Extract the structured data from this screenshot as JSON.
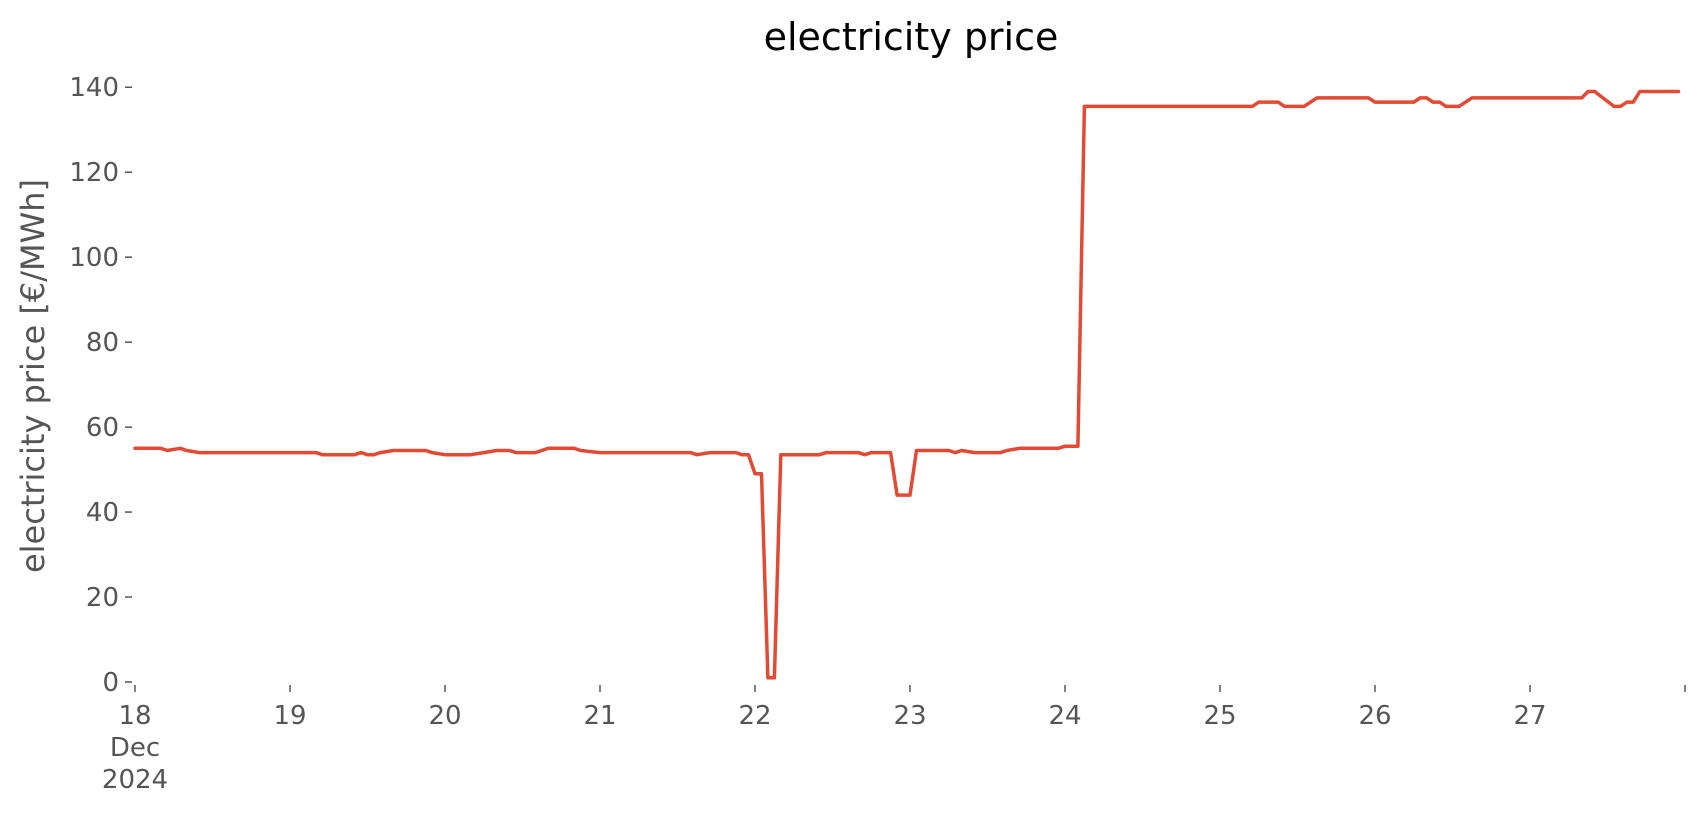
{
  "chart_data": {
    "type": "line",
    "title": "electricity price",
    "xlabel": "",
    "ylabel": "electricity price [€/MWh]",
    "ylim": [
      0,
      145
    ],
    "xlim": [
      "2024-12-18",
      "2024-12-28"
    ],
    "grid": false,
    "legend": "none",
    "y_ticks": [
      "0",
      "20",
      "40",
      "60",
      "80",
      "100",
      "120",
      "140"
    ],
    "x_ticks": [
      {
        "lines": [
          "18",
          "Dec",
          "2024"
        ]
      },
      {
        "lines": [
          "19"
        ]
      },
      {
        "lines": [
          "20"
        ]
      },
      {
        "lines": [
          "21"
        ]
      },
      {
        "lines": [
          "22"
        ]
      },
      {
        "lines": [
          "23"
        ]
      },
      {
        "lines": [
          "24"
        ]
      },
      {
        "lines": [
          "25"
        ]
      },
      {
        "lines": [
          "26"
        ]
      },
      {
        "lines": [
          "27"
        ]
      },
      {
        "lines": [
          ""
        ]
      }
    ],
    "series": [
      {
        "color": "#e24a33",
        "points": [
          [
            "2024-12-18 00:00",
            55
          ],
          [
            "2024-12-18 04:00",
            55
          ],
          [
            "2024-12-18 05:00",
            54.5
          ],
          [
            "2024-12-18 07:00",
            55
          ],
          [
            "2024-12-18 08:00",
            54.5
          ],
          [
            "2024-12-18 10:00",
            54
          ],
          [
            "2024-12-19 04:00",
            54
          ],
          [
            "2024-12-19 05:00",
            53.5
          ],
          [
            "2024-12-19 10:00",
            53.5
          ],
          [
            "2024-12-19 11:00",
            54
          ],
          [
            "2024-12-19 12:00",
            53.5
          ],
          [
            "2024-12-19 13:00",
            53.5
          ],
          [
            "2024-12-19 14:00",
            54
          ],
          [
            "2024-12-19 16:00",
            54.5
          ],
          [
            "2024-12-19 21:00",
            54.5
          ],
          [
            "2024-12-19 22:00",
            54
          ],
          [
            "2024-12-20 00:00",
            53.5
          ],
          [
            "2024-12-20 04:00",
            53.5
          ],
          [
            "2024-12-20 06:00",
            54
          ],
          [
            "2024-12-20 08:00",
            54.5
          ],
          [
            "2024-12-20 10:00",
            54.5
          ],
          [
            "2024-12-20 11:00",
            54
          ],
          [
            "2024-12-20 14:00",
            54
          ],
          [
            "2024-12-20 16:00",
            55
          ],
          [
            "2024-12-20 20:00",
            55
          ],
          [
            "2024-12-20 21:00",
            54.5
          ],
          [
            "2024-12-21 00:00",
            54
          ],
          [
            "2024-12-21 14:00",
            54
          ],
          [
            "2024-12-21 15:00",
            53.5
          ],
          [
            "2024-12-21 17:00",
            54
          ],
          [
            "2024-12-21 21:00",
            54
          ],
          [
            "2024-12-21 22:00",
            53.5
          ],
          [
            "2024-12-21 23:00",
            53.5
          ],
          [
            "2024-12-22 00:00",
            49
          ],
          [
            "2024-12-22 01:00",
            49
          ],
          [
            "2024-12-22 02:00",
            1
          ],
          [
            "2024-12-22 03:00",
            1
          ],
          [
            "2024-12-22 04:00",
            53.5
          ],
          [
            "2024-12-22 10:00",
            53.5
          ],
          [
            "2024-12-22 11:00",
            54
          ],
          [
            "2024-12-22 16:00",
            54
          ],
          [
            "2024-12-22 17:00",
            53.5
          ],
          [
            "2024-12-22 18:00",
            54
          ],
          [
            "2024-12-22 21:00",
            54
          ],
          [
            "2024-12-22 22:00",
            44
          ],
          [
            "2024-12-23 00:00",
            44
          ],
          [
            "2024-12-23 01:00",
            54.5
          ],
          [
            "2024-12-23 06:00",
            54.5
          ],
          [
            "2024-12-23 07:00",
            54
          ],
          [
            "2024-12-23 08:00",
            54.5
          ],
          [
            "2024-12-23 10:00",
            54
          ],
          [
            "2024-12-23 14:00",
            54
          ],
          [
            "2024-12-23 15:00",
            54.5
          ],
          [
            "2024-12-23 17:00",
            55
          ],
          [
            "2024-12-23 23:00",
            55
          ],
          [
            "2024-12-24 00:00",
            55.5
          ],
          [
            "2024-12-24 02:00",
            55.5
          ],
          [
            "2024-12-24 03:00",
            135.5
          ],
          [
            "2024-12-25 05:00",
            135.5
          ],
          [
            "2024-12-25 06:00",
            136.5
          ],
          [
            "2024-12-25 09:00",
            136.5
          ],
          [
            "2024-12-25 10:00",
            135.5
          ],
          [
            "2024-12-25 13:00",
            135.5
          ],
          [
            "2024-12-25 15:00",
            137.5
          ],
          [
            "2024-12-25 23:00",
            137.5
          ],
          [
            "2024-12-26 00:00",
            136.5
          ],
          [
            "2024-12-26 06:00",
            136.5
          ],
          [
            "2024-12-26 07:00",
            137.5
          ],
          [
            "2024-12-26 08:00",
            137.5
          ],
          [
            "2024-12-26 09:00",
            136.5
          ],
          [
            "2024-12-26 10:00",
            136.5
          ],
          [
            "2024-12-26 11:00",
            135.5
          ],
          [
            "2024-12-26 13:00",
            135.5
          ],
          [
            "2024-12-26 15:00",
            137.5
          ],
          [
            "2024-12-27 08:00",
            137.5
          ],
          [
            "2024-12-27 09:00",
            139
          ],
          [
            "2024-12-27 10:00",
            139
          ],
          [
            "2024-12-27 13:00",
            135.5
          ],
          [
            "2024-12-27 14:00",
            135.5
          ],
          [
            "2024-12-27 15:00",
            136.5
          ],
          [
            "2024-12-27 16:00",
            136.5
          ],
          [
            "2024-12-27 17:00",
            139
          ],
          [
            "2024-12-27 23:00",
            139
          ]
        ]
      }
    ]
  }
}
